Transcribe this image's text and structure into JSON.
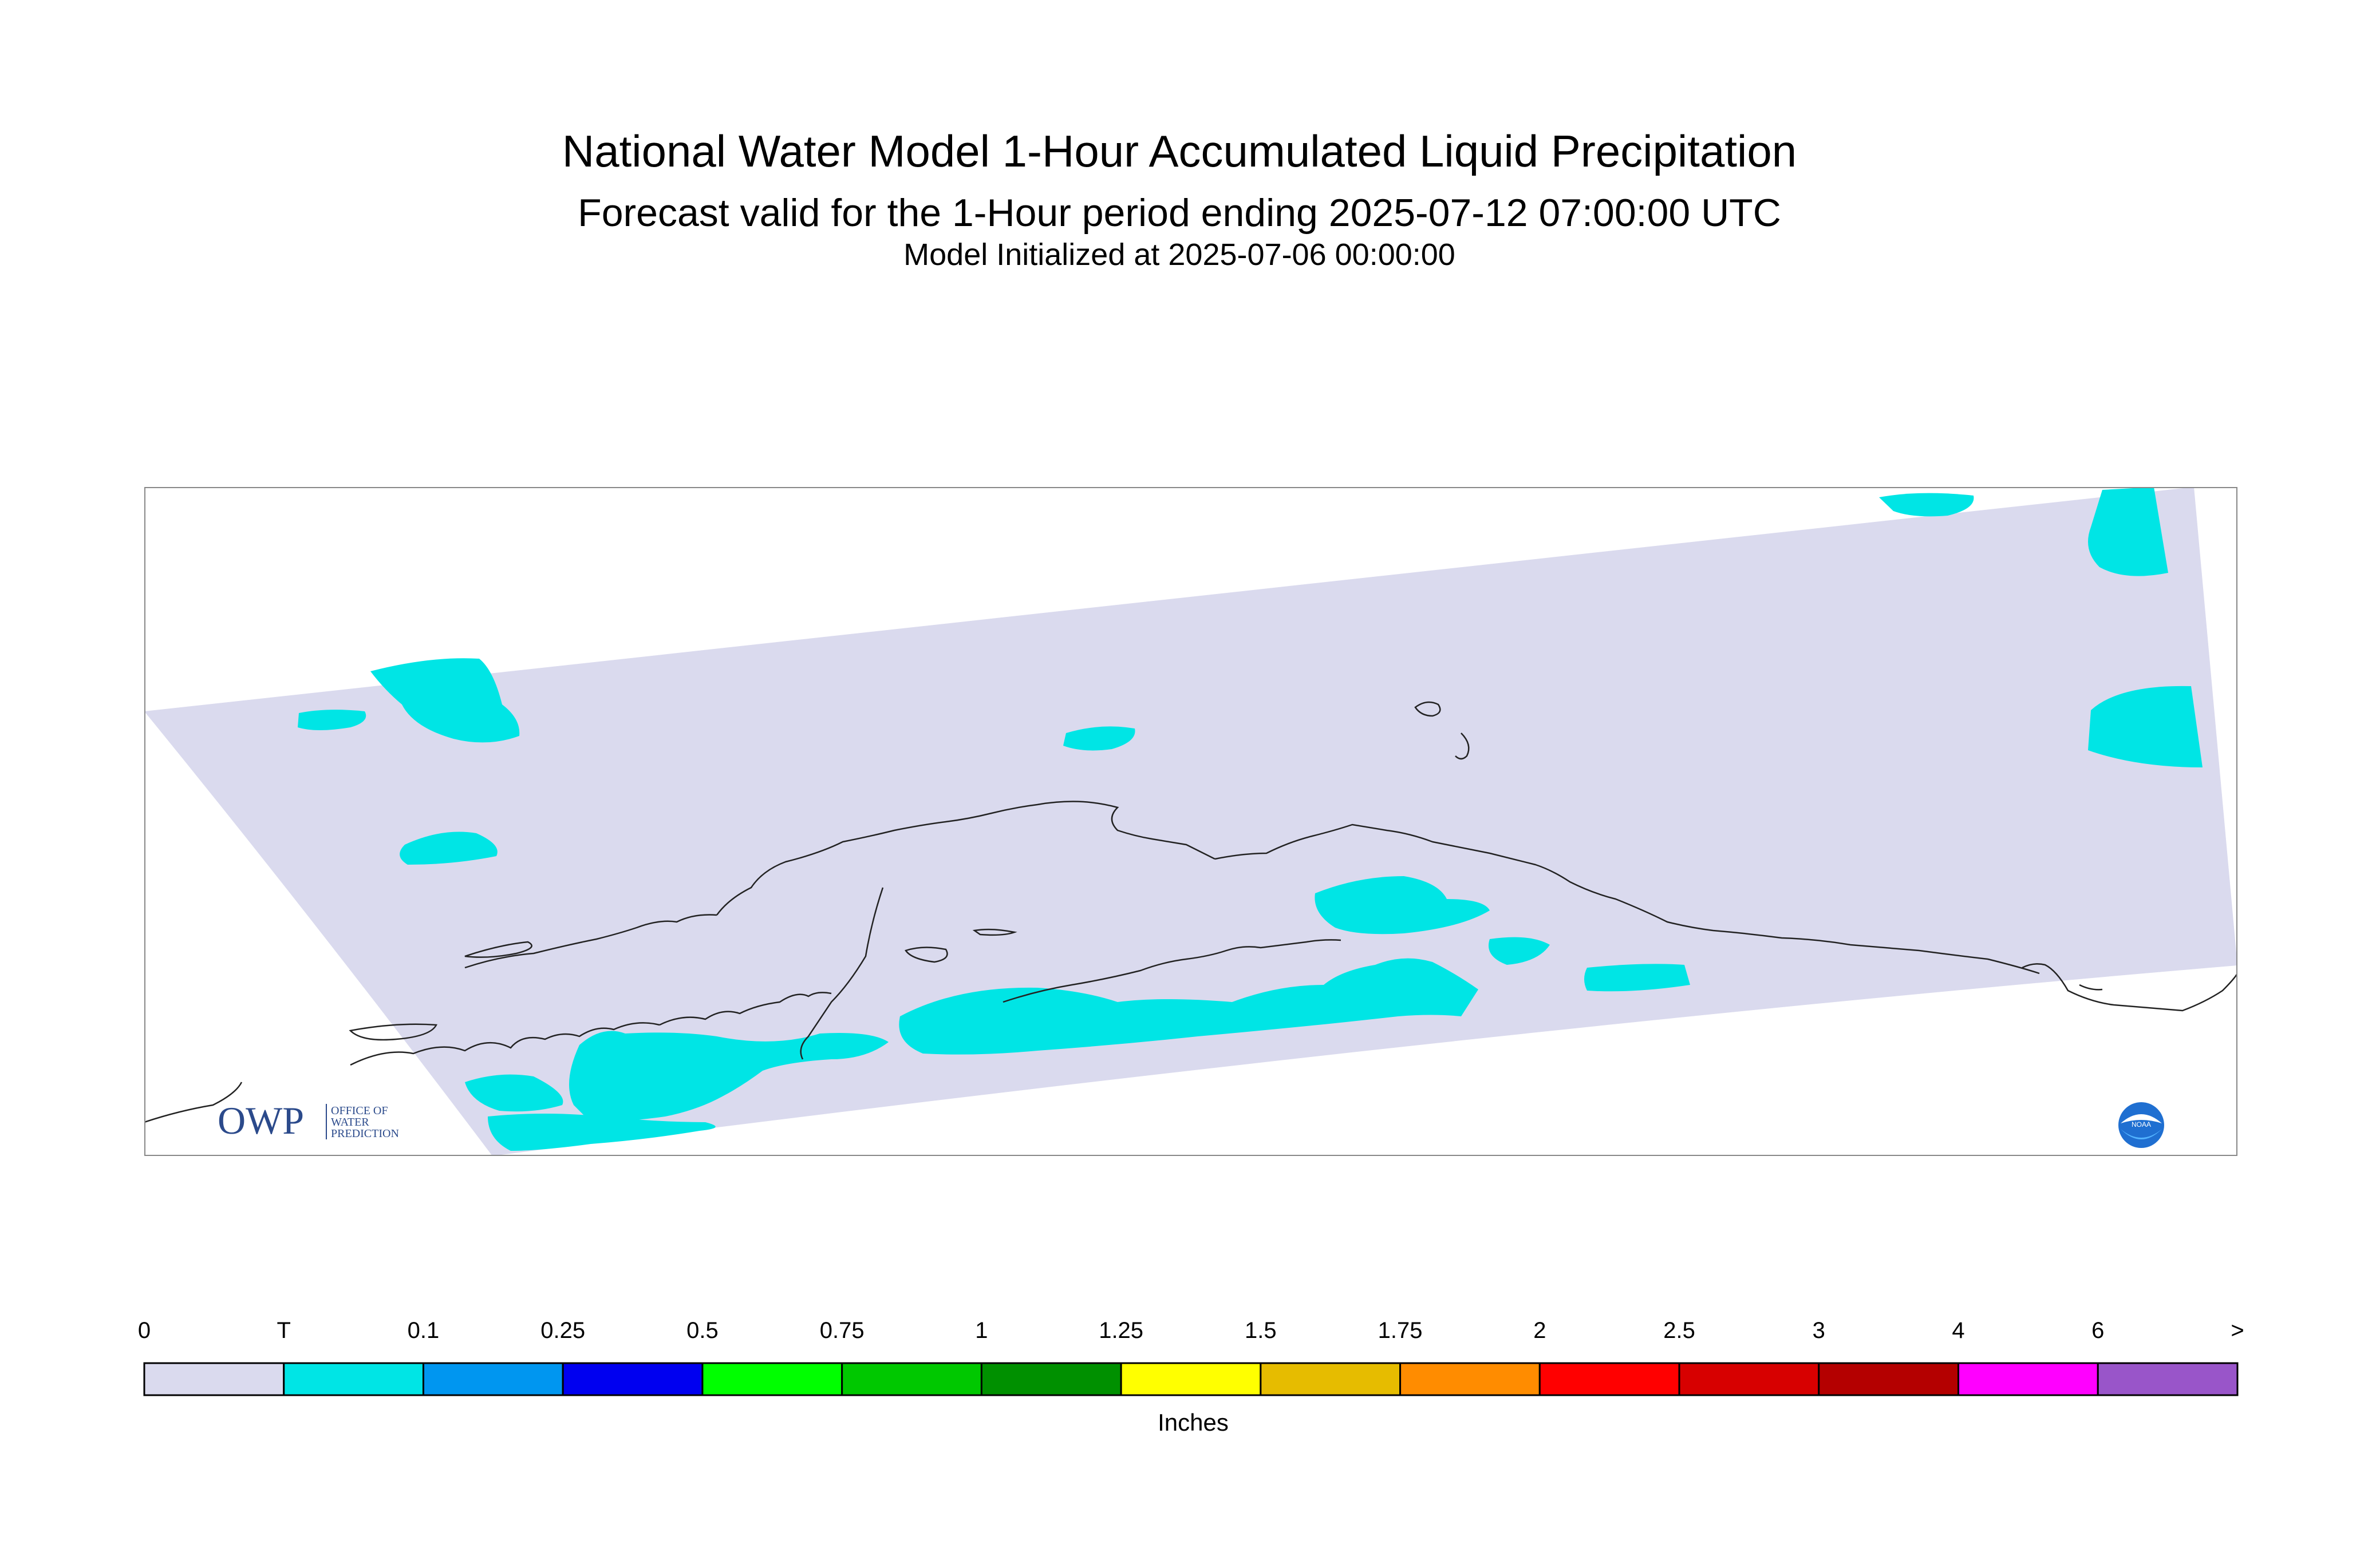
{
  "header": {
    "title": "National Water Model 1-Hour Accumulated Liquid Precipitation",
    "subtitle": "Forecast valid for the 1-Hour period ending 2025-07-12 07:00:00 UTC",
    "init": "Model Initialized at 2025-07-06 00:00:00"
  },
  "logos": {
    "owp_mark": "OWP",
    "owp_text_lines": [
      "OFFICE OF",
      "WATER",
      "PREDICTION"
    ],
    "noaa_mark": "NOAA"
  },
  "legend": {
    "units": "Inches",
    "labels": [
      "0",
      "T",
      "0.1",
      "0.25",
      "0.5",
      "0.75",
      "1",
      "1.25",
      "1.5",
      "1.75",
      "2",
      "2.5",
      "3",
      "4",
      "6",
      ">"
    ],
    "colors": [
      "#dadaee",
      "#00e5e5",
      "#0096f0",
      "#0000f0",
      "#00ff00",
      "#00c800",
      "#009000",
      "#ffff00",
      "#e6bc00",
      "#ff8c00",
      "#ff0000",
      "#d70000",
      "#b40000",
      "#ff00ff",
      "#9955c9"
    ]
  },
  "colors": {
    "domain_fill": "#dadaee",
    "trace_fill": "#00e5e5",
    "coastline": "#000000",
    "frame": "#888888"
  }
}
